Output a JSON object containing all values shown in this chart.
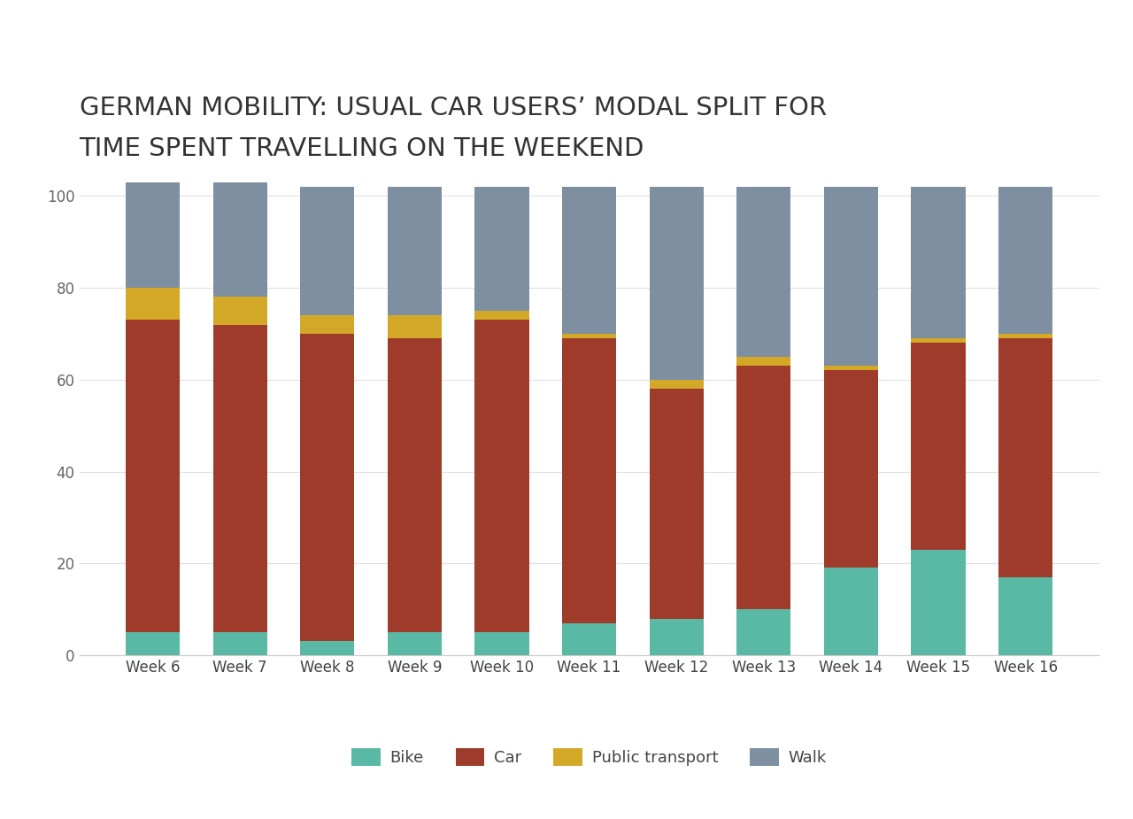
{
  "title_line1": "GERMAN MOBILITY: USUAL CAR USERS’ MODAL SPLIT FOR",
  "title_line2": "TIME SPENT TRAVELLING ON THE WEEKEND",
  "categories": [
    "Week 6",
    "Week 7",
    "Week 8",
    "Week 9",
    "Week 10",
    "Week 11",
    "Week 12",
    "Week 13",
    "Week 14",
    "Week 15",
    "Week 16"
  ],
  "bike": [
    5,
    5,
    3,
    5,
    5,
    7,
    8,
    10,
    19,
    23,
    17
  ],
  "car": [
    68,
    67,
    67,
    64,
    68,
    62,
    50,
    53,
    43,
    45,
    52
  ],
  "public_transport": [
    7,
    6,
    4,
    5,
    2,
    1,
    2,
    2,
    1,
    1,
    1
  ],
  "walk": [
    23,
    25,
    28,
    28,
    27,
    32,
    42,
    37,
    39,
    33,
    32
  ],
  "bike_color": "#5ab9a5",
  "car_color": "#9e3b2b",
  "pt_color": "#d4a827",
  "walk_color": "#7d8fa1",
  "bg_color": "#ffffff",
  "title_fontsize": 21,
  "tick_fontsize": 12,
  "legend_fontsize": 13,
  "ylim": [
    0,
    107
  ],
  "yticks": [
    0,
    20,
    40,
    60,
    80,
    100
  ],
  "bar_width": 0.62,
  "legend_labels": [
    "Bike",
    "Car",
    "Public transport",
    "Walk"
  ],
  "legend_icon_colors": [
    "#5ab9a5",
    "#9e3b2b",
    "#d4a827",
    "#7d8fa1"
  ]
}
